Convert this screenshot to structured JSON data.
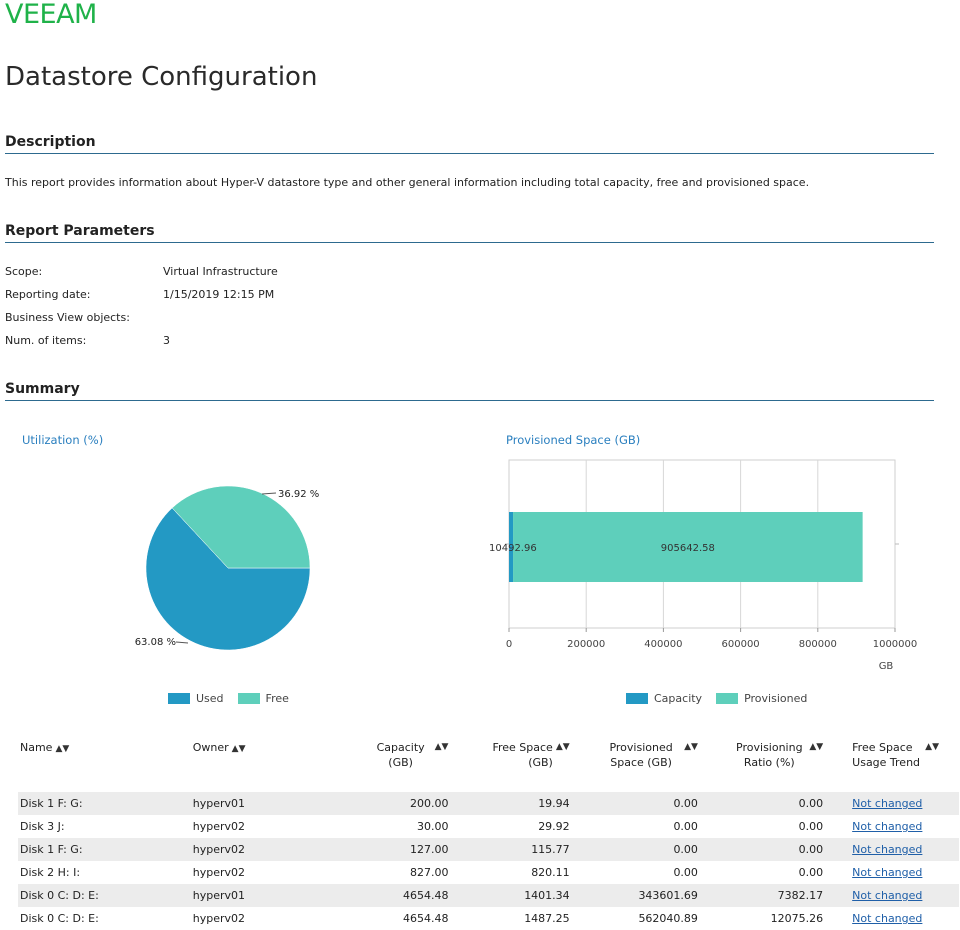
{
  "brand": "VEEAM",
  "title": "Datastore Configuration",
  "description": {
    "heading": "Description",
    "text": "This report provides information about Hyper-V datastore type and other general information including total capacity, free and provisioned space."
  },
  "parameters": {
    "heading": "Report Parameters",
    "rows": [
      {
        "label": "Scope:",
        "value": "Virtual Infrastructure"
      },
      {
        "label": "Reporting date:",
        "value": "1/15/2019 12:15 PM"
      },
      {
        "label": "Business View objects:",
        "value": ""
      },
      {
        "label": "Num. of items:",
        "value": "3"
      }
    ]
  },
  "summary": {
    "heading": "Summary"
  },
  "colors": {
    "used": "#2399c4",
    "free": "#5ecfbb",
    "accent": "#2a7fbf",
    "rule": "#2d6a8f"
  },
  "chart_data": [
    {
      "type": "pie",
      "title": "Utilization (%)",
      "labels": [
        "Used",
        "Free"
      ],
      "values": [
        63.08,
        36.92
      ],
      "value_labels": [
        "63.08 %",
        "36.92 %"
      ],
      "legend": [
        "Used",
        "Free"
      ]
    },
    {
      "type": "bar",
      "orientation": "horizontal",
      "stacked": true,
      "title": "Provisioned Space (GB)",
      "series": [
        {
          "name": "Capacity",
          "values": [
            10492.96
          ]
        },
        {
          "name": "Provisioned",
          "values": [
            905642.58
          ]
        }
      ],
      "value_labels": [
        "10492.96",
        "905642.58"
      ],
      "xlim": [
        0,
        1000000
      ],
      "xticks": [
        "0",
        "200000",
        "400000",
        "600000",
        "800000",
        "1000000"
      ],
      "xlabel": "GB",
      "legend": [
        "Capacity",
        "Provisioned"
      ]
    }
  ],
  "table": {
    "headers": [
      "Name",
      "Owner",
      "Capacity (GB)",
      "Free Space (GB)",
      "Provisioned Space (GB)",
      "Provisioning Ratio (%)",
      "Free Space Usage Trend"
    ],
    "rows": [
      [
        "Disk 1  F: G:",
        "hyperv01",
        "200.00",
        "19.94",
        "0.00",
        "0.00",
        "Not changed"
      ],
      [
        "Disk 3  J:",
        "hyperv02",
        "30.00",
        "29.92",
        "0.00",
        "0.00",
        "Not changed"
      ],
      [
        "Disk 1  F: G:",
        "hyperv02",
        "127.00",
        "115.77",
        "0.00",
        "0.00",
        "Not changed"
      ],
      [
        "Disk 2  H: I:",
        "hyperv02",
        "827.00",
        "820.11",
        "0.00",
        "0.00",
        "Not changed"
      ],
      [
        "Disk 0  C: D: E:",
        "hyperv01",
        "4654.48",
        "1401.34",
        "343601.69",
        "7382.17",
        "Not changed"
      ],
      [
        "Disk 0  C: D: E:",
        "hyperv02",
        "4654.48",
        "1487.25",
        "562040.89",
        "12075.26",
        "Not changed"
      ]
    ]
  }
}
